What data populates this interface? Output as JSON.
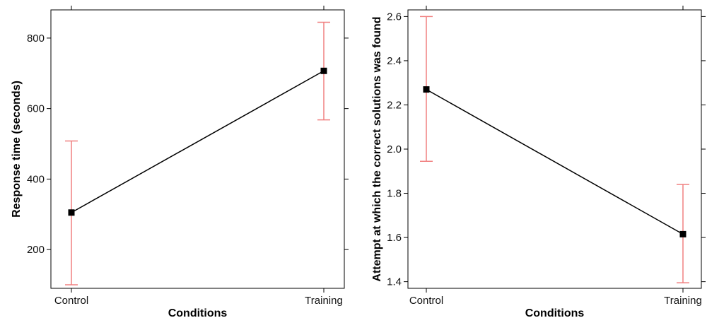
{
  "chart_data": [
    {
      "type": "line",
      "categories": [
        "Control",
        "Training"
      ],
      "xlabel": "Conditions",
      "ylabel": "Response time (seconds)",
      "ylim": [
        90,
        880
      ],
      "yticks": [
        200,
        400,
        600,
        800
      ],
      "series": [
        {
          "values": [
            305,
            707
          ],
          "error_low": [
            100,
            568
          ],
          "error_high": [
            508,
            845
          ]
        }
      ],
      "grid": false,
      "marker_color": "#000000",
      "line_color": "#000000",
      "error_color": "#f08080"
    },
    {
      "type": "line",
      "categories": [
        "Control",
        "Training"
      ],
      "xlabel": "Conditions",
      "ylabel": "Attempt at which the correct solutions was found",
      "ylim": [
        1.37,
        2.63
      ],
      "yticks": [
        "1.4",
        "1.6",
        "1.8",
        "2.0",
        "2.2",
        "2.4",
        "2.6"
      ],
      "series": [
        {
          "values": [
            2.27,
            1.615
          ],
          "error_low": [
            1.945,
            1.395
          ],
          "error_high": [
            2.6,
            1.84
          ]
        }
      ],
      "grid": false,
      "marker_color": "#000000",
      "line_color": "#000000",
      "error_color": "#f08080"
    }
  ]
}
